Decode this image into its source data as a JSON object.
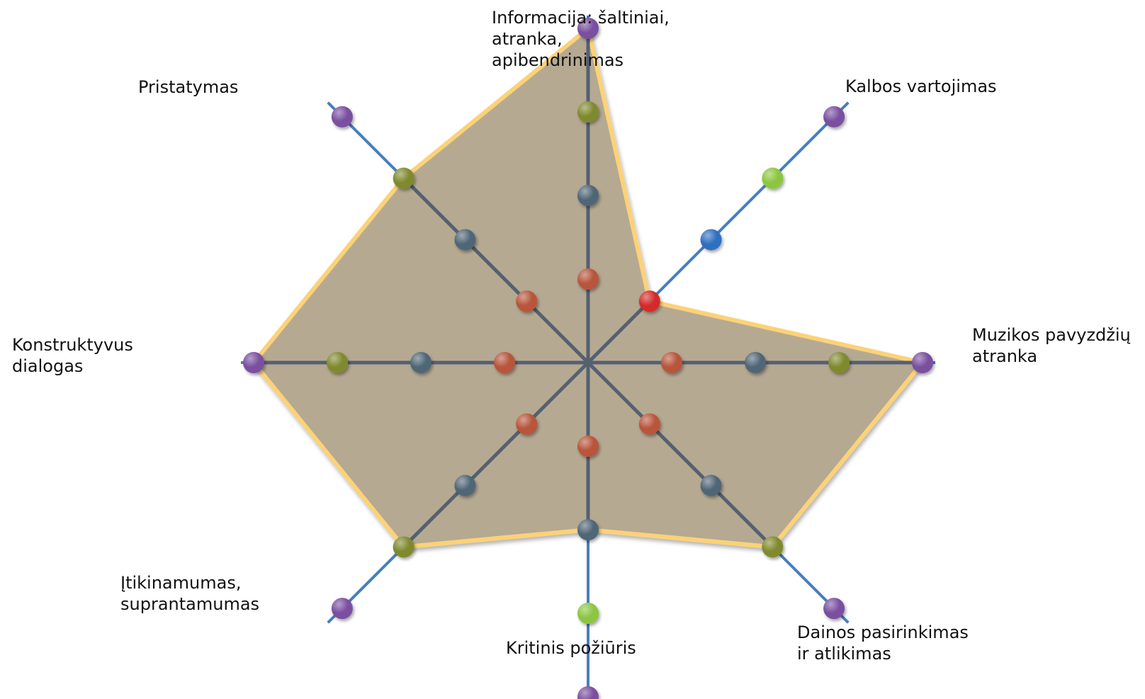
{
  "chart_data": {
    "type": "radar",
    "axes": [
      {
        "label": "Informacija: šaltiniai,\natranka,\napibendrinimas",
        "value": 4
      },
      {
        "label": "Kalbos vartojimas",
        "value": 1
      },
      {
        "label": "Muzikos pavyzdžių\natranka",
        "value": 4
      },
      {
        "label": "Dainos pasirinkimas\nir atlikimas",
        "value": 3
      },
      {
        "label": "Kritinis požiūris",
        "value": 2
      },
      {
        "label": "Įtikinamumas,\nsuprantamumas",
        "value": 3
      },
      {
        "label": "Konstruktyvus\ndialogas",
        "value": 4
      },
      {
        "label": "Pristatymas",
        "value": 3
      }
    ],
    "scale": [
      1,
      2,
      3,
      4
    ],
    "colors": {
      "axis_outer": "#4a7ebb",
      "axis_inner": "#556070",
      "polygon_fill": "#b3a68d",
      "polygon_stroke": "#fcd277",
      "level_1": "#b8553a",
      "level_2": "#4f6677",
      "level_3": "#7f8a2e",
      "level_4": "#7a4fa0",
      "level_1_dim": "#b8553a",
      "level_2_bright": "#2f6fc0",
      "level_3_bright": "#8cc63f",
      "highlight": "#d42a2a"
    }
  }
}
